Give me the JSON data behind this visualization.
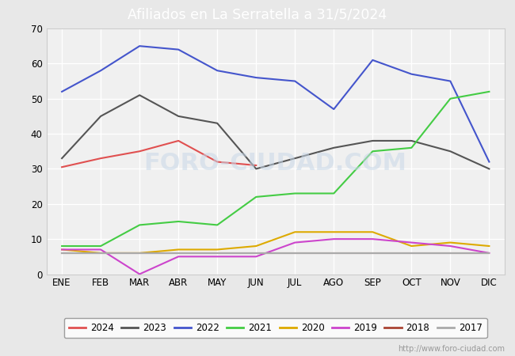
{
  "title": "Afiliados en La Serratella a 31/5/2024",
  "header_bg": "#4a90d9",
  "ylim": [
    0,
    70
  ],
  "yticks": [
    0,
    10,
    20,
    30,
    40,
    50,
    60,
    70
  ],
  "months": [
    "ENE",
    "FEB",
    "MAR",
    "ABR",
    "MAY",
    "JUN",
    "JUL",
    "AGO",
    "SEP",
    "OCT",
    "NOV",
    "DIC"
  ],
  "watermark": "http://www.foro-ciudad.com",
  "series": {
    "2024": {
      "color": "#e05050",
      "data": [
        30.5,
        33,
        35,
        38,
        32,
        31,
        null,
        null,
        null,
        null,
        null,
        null
      ]
    },
    "2023": {
      "color": "#555555",
      "data": [
        33,
        45,
        51,
        45,
        43,
        30,
        33,
        36,
        38,
        38,
        35,
        30
      ]
    },
    "2022": {
      "color": "#4455cc",
      "data": [
        52,
        58,
        65,
        64,
        58,
        56,
        55,
        47,
        61,
        57,
        55,
        32
      ]
    },
    "2021": {
      "color": "#44cc44",
      "data": [
        8,
        8,
        14,
        15,
        14,
        22,
        23,
        23,
        35,
        36,
        50,
        52
      ]
    },
    "2020": {
      "color": "#ddaa00",
      "data": [
        7,
        6,
        6,
        7,
        7,
        8,
        12,
        12,
        12,
        8,
        9,
        8
      ]
    },
    "2019": {
      "color": "#cc44cc",
      "data": [
        7,
        7,
        0,
        5,
        5,
        5,
        9,
        10,
        10,
        9,
        8,
        6
      ]
    },
    "2018": {
      "color": "#aa4433",
      "data": [
        6,
        6,
        6,
        6,
        6,
        6,
        6,
        6,
        6,
        6,
        6,
        6
      ]
    },
    "2017": {
      "color": "#aaaaaa",
      "data": [
        6,
        6,
        6,
        6,
        6,
        6,
        6,
        6,
        6,
        6,
        6,
        6
      ]
    }
  },
  "legend_order": [
    "2024",
    "2023",
    "2022",
    "2021",
    "2020",
    "2019",
    "2018",
    "2017"
  ],
  "outer_bg": "#e8e8e8",
  "plot_bg": "#f0f0f0",
  "grid_color": "#ffffff"
}
